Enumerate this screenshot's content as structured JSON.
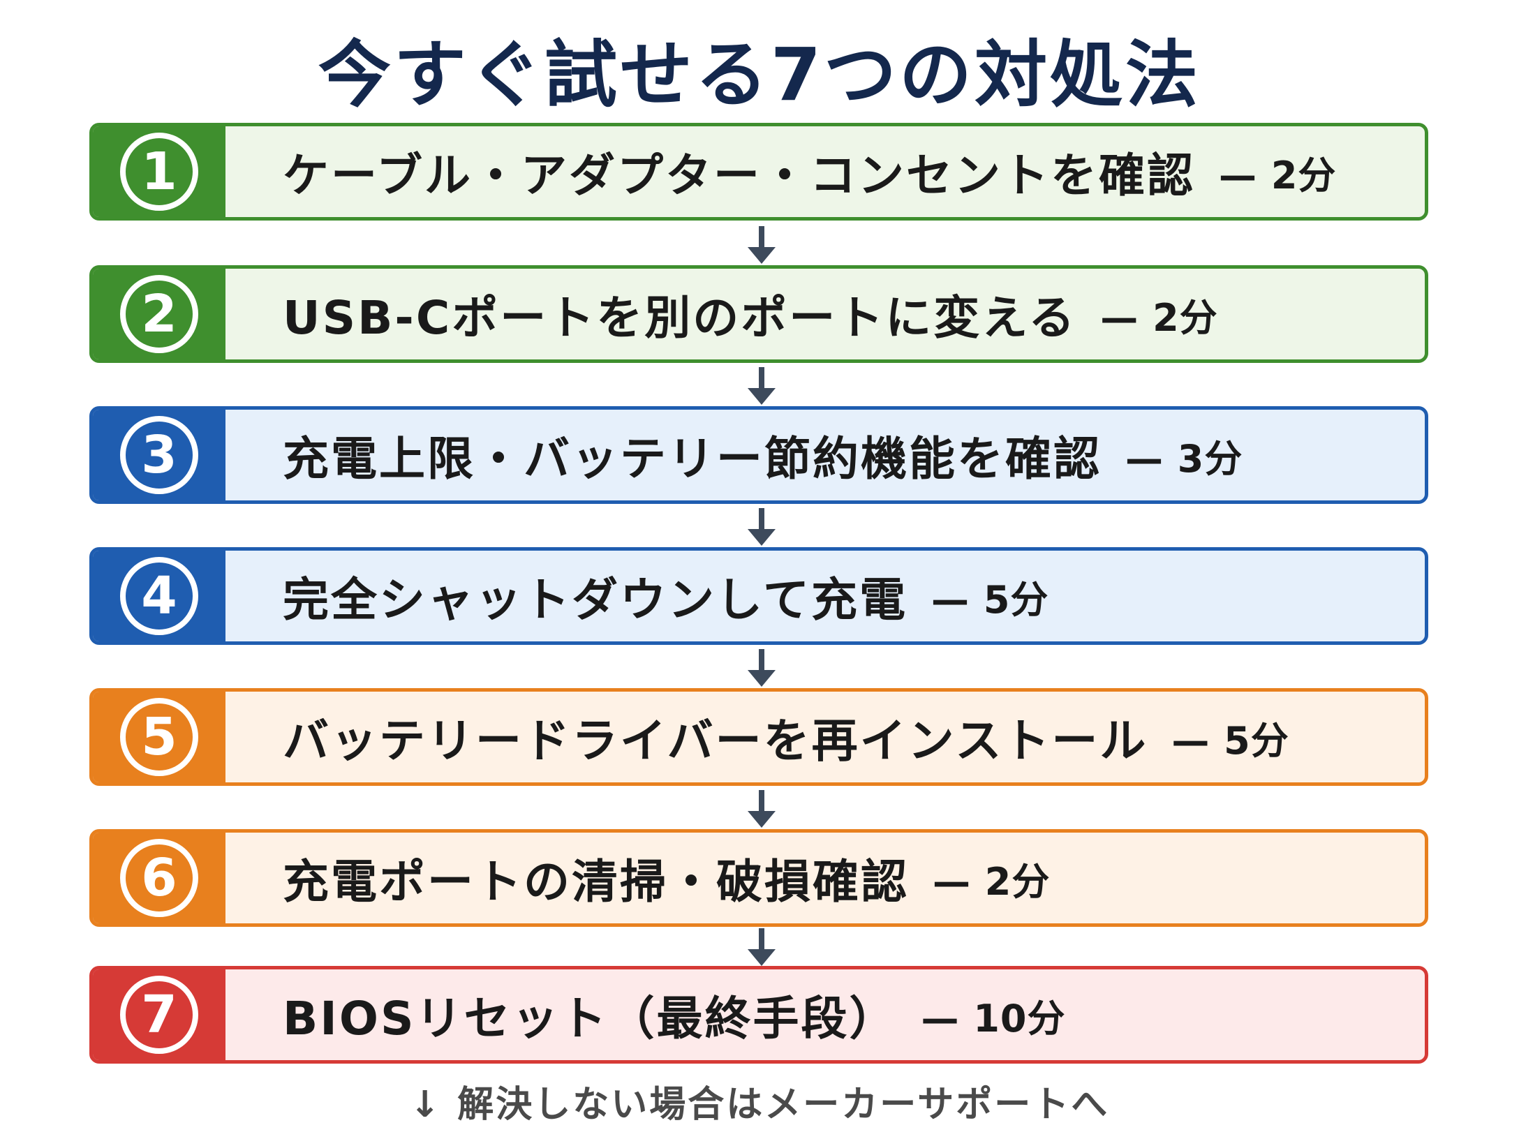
{
  "title": "今すぐ試せる7つの対処法",
  "steps": [
    {
      "number": "1",
      "label": "ケーブル・アダプター・コンセントを確認",
      "time": "— 2分"
    },
    {
      "number": "2",
      "label": "USB-Cポートを別のポートに変える",
      "time": "— 2分"
    },
    {
      "number": "3",
      "label": "充電上限・バッテリー節約機能を確認",
      "time": "— 3分"
    },
    {
      "number": "4",
      "label": "完全シャットダウンして充電",
      "time": "— 5分"
    },
    {
      "number": "5",
      "label": "バッテリードライバーを再インストール",
      "time": "— 5分"
    },
    {
      "number": "6",
      "label": "充電ポートの清掃・破損確認",
      "time": "— 2分"
    },
    {
      "number": "7",
      "label": "BIOSリセット（最終手段）",
      "time": "— 10分"
    }
  ],
  "colors": {
    "green": "#3f8f2e",
    "green_bg": "#eef6e8",
    "blue": "#1f5db0",
    "blue_bg": "#e6f0fb",
    "orange": "#e8801e",
    "orange_bg": "#fef2e6",
    "red": "#d63a36",
    "red_bg": "#fdeaea",
    "arrow": "#3d4a5c"
  },
  "footer": {
    "arrow_icon": "↓",
    "text": "解決しない場合はメーカーサポートへ"
  }
}
